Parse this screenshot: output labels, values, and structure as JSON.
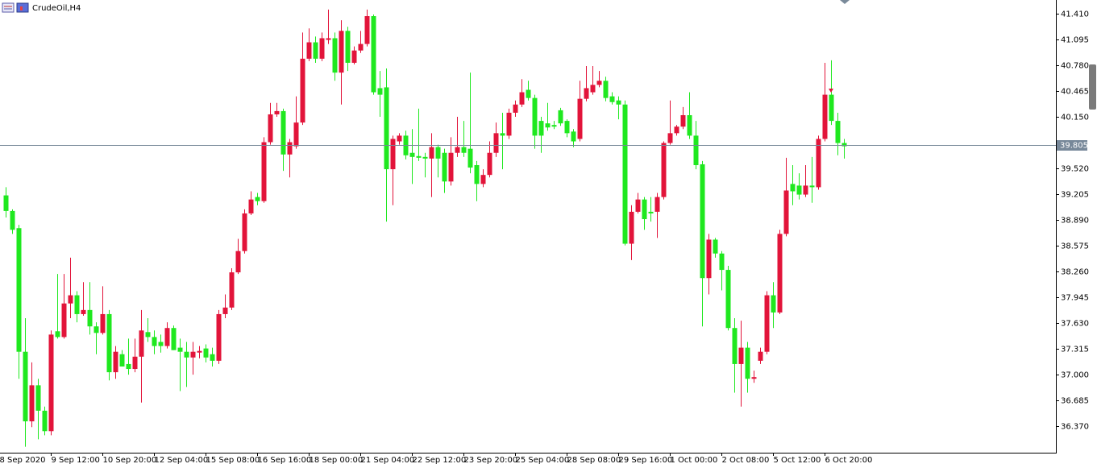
{
  "chart_data": {
    "type": "candlestick",
    "title": "CrudeOil,H4",
    "colors": {
      "up": "#e2143a",
      "down": "#1fe81f"
    },
    "bid": 39.805,
    "xlim": [
      -0.875,
      162.875
    ],
    "ylim": [
      36.047,
      41.577
    ],
    "yticks": [
      {
        "value": 41.41,
        "label": "41.410"
      },
      41.095,
      {
        "value": 40.78,
        "label": "40.780"
      },
      40.465,
      {
        "value": 40.15,
        "label": "40.150"
      },
      {
        "value": 39.52,
        "label": "39.520"
      },
      39.205,
      {
        "value": 38.89,
        "label": "38.890"
      },
      38.575,
      {
        "value": 38.26,
        "label": "38.260"
      },
      37.945,
      {
        "value": 37.63,
        "label": "37.630"
      },
      37.315,
      {
        "value": 37.0,
        "label": "37.000"
      },
      36.685,
      {
        "value": 36.37,
        "label": "36.370"
      }
    ],
    "xticks": [
      {
        "value": -1,
        "label": "8 Sep 2020"
      },
      {
        "value": 7,
        "label": "9 Sep 12:00"
      },
      {
        "value": 15,
        "label": "10 Sep 20:00"
      },
      {
        "value": 23,
        "label": "12 Sep 04:00"
      },
      {
        "value": 31,
        "label": "15 Sep 08:00"
      },
      {
        "value": 39,
        "label": "16 Sep 16:00"
      },
      {
        "value": 47,
        "label": "18 Sep 00:00"
      },
      {
        "value": 55,
        "label": "21 Sep 04:00"
      },
      {
        "value": 63,
        "label": "22 Sep 12:00"
      },
      {
        "value": 71,
        "label": "23 Sep 20:00"
      },
      {
        "value": 79,
        "label": "25 Sep 04:00"
      },
      {
        "value": 87,
        "label": "28 Sep 08:00"
      },
      {
        "value": 95,
        "label": "29 Sep 16:00"
      },
      {
        "value": 103,
        "label": "1 Oct 00:00"
      },
      {
        "value": 111,
        "label": "2 Oct 08:00"
      },
      {
        "value": 119,
        "label": "5 Oct 12:00"
      },
      {
        "value": 127,
        "label": "6 Oct 20:00"
      }
    ],
    "open": [
      39.19,
      39.0,
      38.79,
      37.28,
      36.43,
      36.87,
      36.56,
      36.31,
      37.53,
      37.46,
      37.87,
      37.97,
      37.74,
      37.79,
      37.59,
      37.51,
      37.74,
      37.03,
      37.25,
      37.13,
      37.07,
      37.22,
      37.52,
      37.46,
      37.4,
      37.35,
      37.57,
      37.33,
      37.28,
      37.21,
      37.27,
      37.32,
      37.25,
      37.17,
      37.74,
      37.82,
      38.25,
      38.51,
      38.97,
      39.17,
      39.12,
      39.84,
      40.18,
      40.22,
      39.69,
      39.79,
      40.08,
      40.86,
      41.06,
      40.86,
      41.09,
      41.11,
      40.69,
      41.2,
      40.81,
      40.96,
      41.04,
      41.38,
      40.5,
      40.51,
      39.51,
      39.85,
      39.92,
      39.71,
      39.67,
      39.66,
      39.64,
      39.78,
      39.71,
      39.36,
      39.71,
      39.78,
      39.76,
      39.56,
      39.33,
      39.44,
      39.71,
      39.95,
      39.92,
      40.2,
      40.3,
      40.48,
      40.38,
      40.1,
      40.07,
      40.05,
      40.23,
      40.1,
      39.97,
      39.88,
      40.37,
      40.45,
      40.54,
      40.59,
      40.4,
      40.35,
      40.3,
      38.6,
      38.99,
      39.14,
      38.99,
      38.99,
      39.17,
      39.83,
      39.95,
      40.03,
      40.17,
      39.92,
      39.57,
      38.18,
      38.65,
      38.48,
      38.28,
      37.57,
      37.13,
      37.33,
      36.95,
      37.17,
      37.28,
      37.97,
      37.76,
      38.72,
      39.33,
      39.31,
      39.2,
      39.31,
      39.29,
      39.88,
      40.42,
      40.1,
      39.83
    ],
    "high": [
      39.29,
      39.02,
      38.83,
      37.69,
      37.15,
      36.95,
      36.61,
      37.54,
      38.23,
      38.23,
      38.43,
      38.02,
      38.13,
      38.13,
      37.64,
      38.08,
      37.79,
      37.35,
      37.3,
      37.44,
      37.44,
      37.79,
      37.69,
      37.54,
      37.49,
      37.64,
      37.6,
      37.44,
      37.4,
      37.4,
      37.35,
      37.37,
      37.33,
      37.79,
      37.98,
      38.3,
      38.66,
      39.02,
      39.24,
      39.22,
      39.9,
      40.32,
      40.32,
      40.25,
      39.88,
      40.4,
      41.18,
      41.23,
      41.13,
      41.18,
      41.46,
      41.18,
      41.33,
      41.25,
      41.01,
      41.2,
      41.46,
      41.4,
      40.71,
      40.74,
      39.92,
      39.95,
      39.98,
      40.0,
      40.25,
      39.71,
      39.95,
      39.81,
      39.76,
      39.9,
      40.15,
      40.1,
      40.69,
      39.61,
      39.51,
      39.85,
      40.08,
      40.2,
      40.25,
      40.35,
      40.61,
      40.59,
      40.42,
      40.15,
      40.32,
      40.1,
      40.26,
      40.12,
      40.0,
      40.59,
      40.77,
      40.77,
      40.71,
      40.64,
      40.45,
      40.4,
      40.35,
      39.07,
      39.22,
      39.17,
      39.17,
      39.22,
      39.85,
      40.35,
      40.05,
      40.27,
      40.45,
      40.1,
      39.61,
      38.72,
      38.67,
      38.51,
      38.33,
      37.69,
      37.66,
      37.4,
      37.05,
      37.33,
      38.02,
      38.13,
      38.77,
      39.65,
      39.56,
      39.46,
      39.56,
      39.66,
      39.92,
      40.81,
      40.84,
      40.2,
      39.88
    ],
    "low": [
      38.92,
      38.72,
      36.95,
      36.12,
      36.36,
      36.21,
      36.26,
      36.26,
      37.44,
      37.44,
      37.69,
      37.64,
      37.72,
      37.49,
      37.25,
      37.49,
      36.93,
      36.95,
      37.1,
      37.0,
      37.03,
      36.66,
      37.4,
      37.25,
      37.27,
      37.32,
      37.3,
      36.8,
      36.85,
      37.0,
      37.2,
      37.15,
      37.1,
      37.13,
      37.69,
      37.79,
      38.23,
      38.48,
      38.95,
      39.07,
      39.1,
      39.81,
      40.15,
      39.49,
      39.41,
      39.76,
      40.05,
      40.83,
      40.81,
      40.83,
      41.04,
      40.59,
      40.3,
      40.71,
      40.79,
      40.93,
      41.01,
      40.42,
      40.15,
      38.87,
      39.07,
      39.81,
      39.63,
      39.33,
      39.61,
      39.41,
      39.17,
      39.41,
      39.22,
      39.31,
      39.66,
      39.66,
      39.46,
      39.12,
      39.29,
      39.41,
      39.66,
      39.51,
      39.88,
      40.15,
      40.27,
      40.35,
      39.76,
      39.71,
      39.98,
      40.0,
      40.04,
      39.9,
      39.78,
      39.85,
      40.34,
      40.42,
      40.51,
      40.34,
      40.3,
      40.12,
      38.58,
      38.4,
      38.97,
      38.77,
      38.87,
      38.67,
      39.14,
      39.81,
      39.92,
      40.0,
      39.88,
      39.51,
      37.59,
      37.98,
      38.43,
      38.03,
      37.54,
      36.78,
      36.61,
      36.78,
      36.9,
      37.13,
      37.25,
      37.57,
      37.74,
      38.69,
      39.07,
      39.14,
      39.17,
      39.1,
      39.26,
      39.85,
      40.05,
      39.68,
      39.64
    ],
    "close": [
      39.0,
      38.77,
      37.28,
      36.43,
      36.87,
      36.56,
      36.31,
      37.49,
      37.46,
      37.87,
      37.97,
      37.74,
      37.79,
      37.59,
      37.51,
      37.74,
      37.03,
      37.28,
      37.1,
      37.07,
      37.22,
      37.54,
      37.46,
      37.35,
      37.35,
      37.57,
      37.3,
      37.28,
      37.21,
      37.28,
      37.29,
      37.21,
      37.17,
      37.74,
      37.82,
      38.25,
      38.51,
      38.97,
      39.14,
      39.12,
      39.84,
      40.18,
      40.22,
      39.69,
      39.84,
      40.08,
      40.86,
      41.06,
      40.86,
      41.11,
      41.11,
      40.69,
      41.2,
      40.81,
      40.96,
      41.04,
      41.38,
      40.45,
      40.42,
      39.51,
      39.88,
      39.92,
      39.68,
      39.66,
      39.65,
      39.64,
      39.78,
      39.64,
      39.36,
      39.71,
      39.78,
      39.71,
      39.53,
      39.33,
      39.44,
      39.71,
      39.95,
      39.92,
      40.2,
      40.3,
      40.45,
      40.38,
      39.92,
      39.92,
      40.02,
      40.03,
      40.07,
      39.95,
      39.85,
      40.37,
      40.5,
      40.54,
      40.59,
      40.38,
      40.33,
      40.3,
      38.6,
      38.99,
      39.14,
      38.9,
      38.97,
      39.17,
      39.83,
      39.95,
      40.03,
      40.17,
      39.92,
      39.56,
      38.18,
      38.65,
      38.48,
      38.28,
      37.57,
      37.13,
      37.33,
      36.95,
      36.97,
      37.28,
      37.97,
      37.76,
      38.72,
      39.25,
      39.24,
      39.2,
      39.31,
      39.29,
      39.88,
      40.42,
      40.1,
      39.83,
      39.79
    ]
  }
}
